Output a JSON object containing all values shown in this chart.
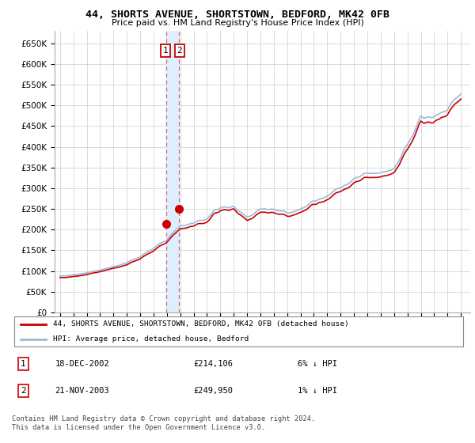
{
  "title": "44, SHORTS AVENUE, SHORTSTOWN, BEDFORD, MK42 0FB",
  "subtitle": "Price paid vs. HM Land Registry's House Price Index (HPI)",
  "ylabel_ticks": [
    "£0",
    "£50K",
    "£100K",
    "£150K",
    "£200K",
    "£250K",
    "£300K",
    "£350K",
    "£400K",
    "£450K",
    "£500K",
    "£550K",
    "£600K",
    "£650K"
  ],
  "ytick_vals": [
    0,
    50000,
    100000,
    150000,
    200000,
    250000,
    300000,
    350000,
    400000,
    450000,
    500000,
    550000,
    600000,
    650000
  ],
  "ylim": [
    0,
    680000
  ],
  "legend_label_red": "44, SHORTS AVENUE, SHORTSTOWN, BEDFORD, MK42 0FB (detached house)",
  "legend_label_blue": "HPI: Average price, detached house, Bedford",
  "transaction1_date": "18-DEC-2002",
  "transaction1_price": "£214,106",
  "transaction1_hpi": "6% ↓ HPI",
  "transaction2_date": "21-NOV-2003",
  "transaction2_price": "£249,950",
  "transaction2_hpi": "1% ↓ HPI",
  "footer": "Contains HM Land Registry data © Crown copyright and database right 2024.\nThis data is licensed under the Open Government Licence v3.0.",
  "red_color": "#cc0000",
  "blue_color": "#99bbdd",
  "vline_color": "#dd4444",
  "box_color": "#ddeeff",
  "purchase1_x": 2002.96,
  "purchase1_y": 214106,
  "purchase2_x": 2003.89,
  "purchase2_y": 249950,
  "xtick_years": [
    1995,
    1996,
    1997,
    1998,
    1999,
    2000,
    2001,
    2002,
    2003,
    2004,
    2005,
    2006,
    2007,
    2008,
    2009,
    2010,
    2011,
    2012,
    2013,
    2014,
    2015,
    2016,
    2017,
    2018,
    2019,
    2020,
    2021,
    2022,
    2023,
    2024,
    2025
  ],
  "xlim_min": 1994.6,
  "xlim_max": 2025.7
}
